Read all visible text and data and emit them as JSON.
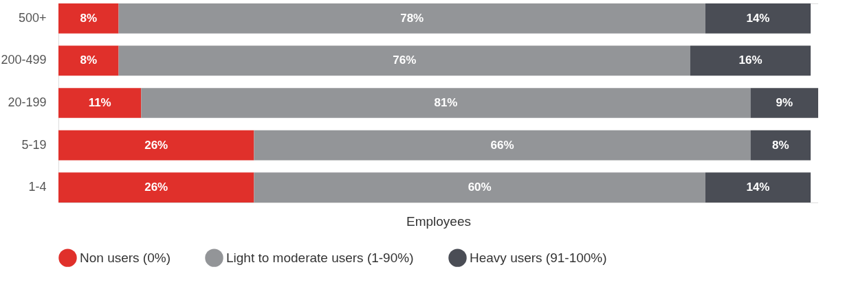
{
  "chart_data": {
    "type": "bar",
    "orientation": "horizontal",
    "stacked": true,
    "categories": [
      "500+",
      "200-499",
      "20-199",
      "5-19",
      "1-4"
    ],
    "xlabel": "Employees",
    "xlim": [
      0,
      101
    ],
    "tick_labels": "y",
    "legend": "bottom",
    "series": [
      {
        "name": "Non users (0%)",
        "color": "#e0302b",
        "values": [
          8,
          8,
          11,
          26,
          26
        ],
        "value_labels": [
          "8%",
          "8%",
          "11%",
          "26%",
          "26%"
        ]
      },
      {
        "name": "Light to moderate users (1-90%)",
        "color": "#939598",
        "values": [
          78,
          76,
          81,
          66,
          60
        ],
        "value_labels": [
          "78%",
          "76%",
          "81%",
          "66%",
          "60%"
        ]
      },
      {
        "name": "Heavy users (91-100%)",
        "color": "#4a4d55",
        "values": [
          14,
          16,
          9,
          8,
          14
        ],
        "value_labels": [
          "14%",
          "16%",
          "9%",
          "8%",
          "14%"
        ]
      }
    ]
  }
}
